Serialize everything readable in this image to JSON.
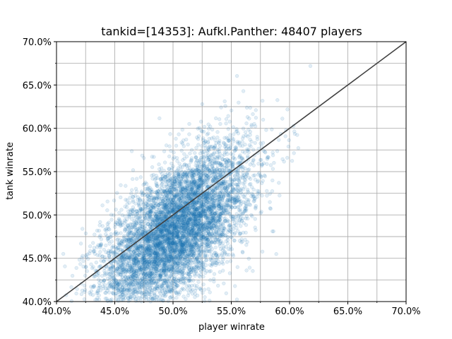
{
  "chart_data": {
    "type": "scatter",
    "title": "tankid=[14353]: Aufkl.Panther: 48407 players",
    "xlabel": "player winrate",
    "ylabel": "tank winrate",
    "xlim": [
      0.4,
      0.7
    ],
    "ylim": [
      0.4,
      0.7
    ],
    "x_ticks": [
      0.4,
      0.45,
      0.5,
      0.55,
      0.6,
      0.65,
      0.7
    ],
    "y_ticks": [
      0.4,
      0.45,
      0.5,
      0.55,
      0.6,
      0.65,
      0.7
    ],
    "x_tick_labels": [
      "40.0%",
      "45.0%",
      "50.0%",
      "55.0%",
      "60.0%",
      "65.0%",
      "70.0%"
    ],
    "y_tick_labels": [
      "40.0%",
      "45.0%",
      "50.0%",
      "55.0%",
      "60.0%",
      "65.0%",
      "70.0%"
    ],
    "grid": true,
    "point_count": 48407,
    "cloud": {
      "center": [
        0.502,
        0.482
      ],
      "sd_x": 0.032,
      "sd_y": 0.048,
      "correlation": 0.62
    },
    "reference_line": {
      "from": [
        0.4,
        0.4
      ],
      "to": [
        0.7,
        0.7
      ],
      "color": "#404040"
    },
    "point_color": "#1f77b4"
  }
}
